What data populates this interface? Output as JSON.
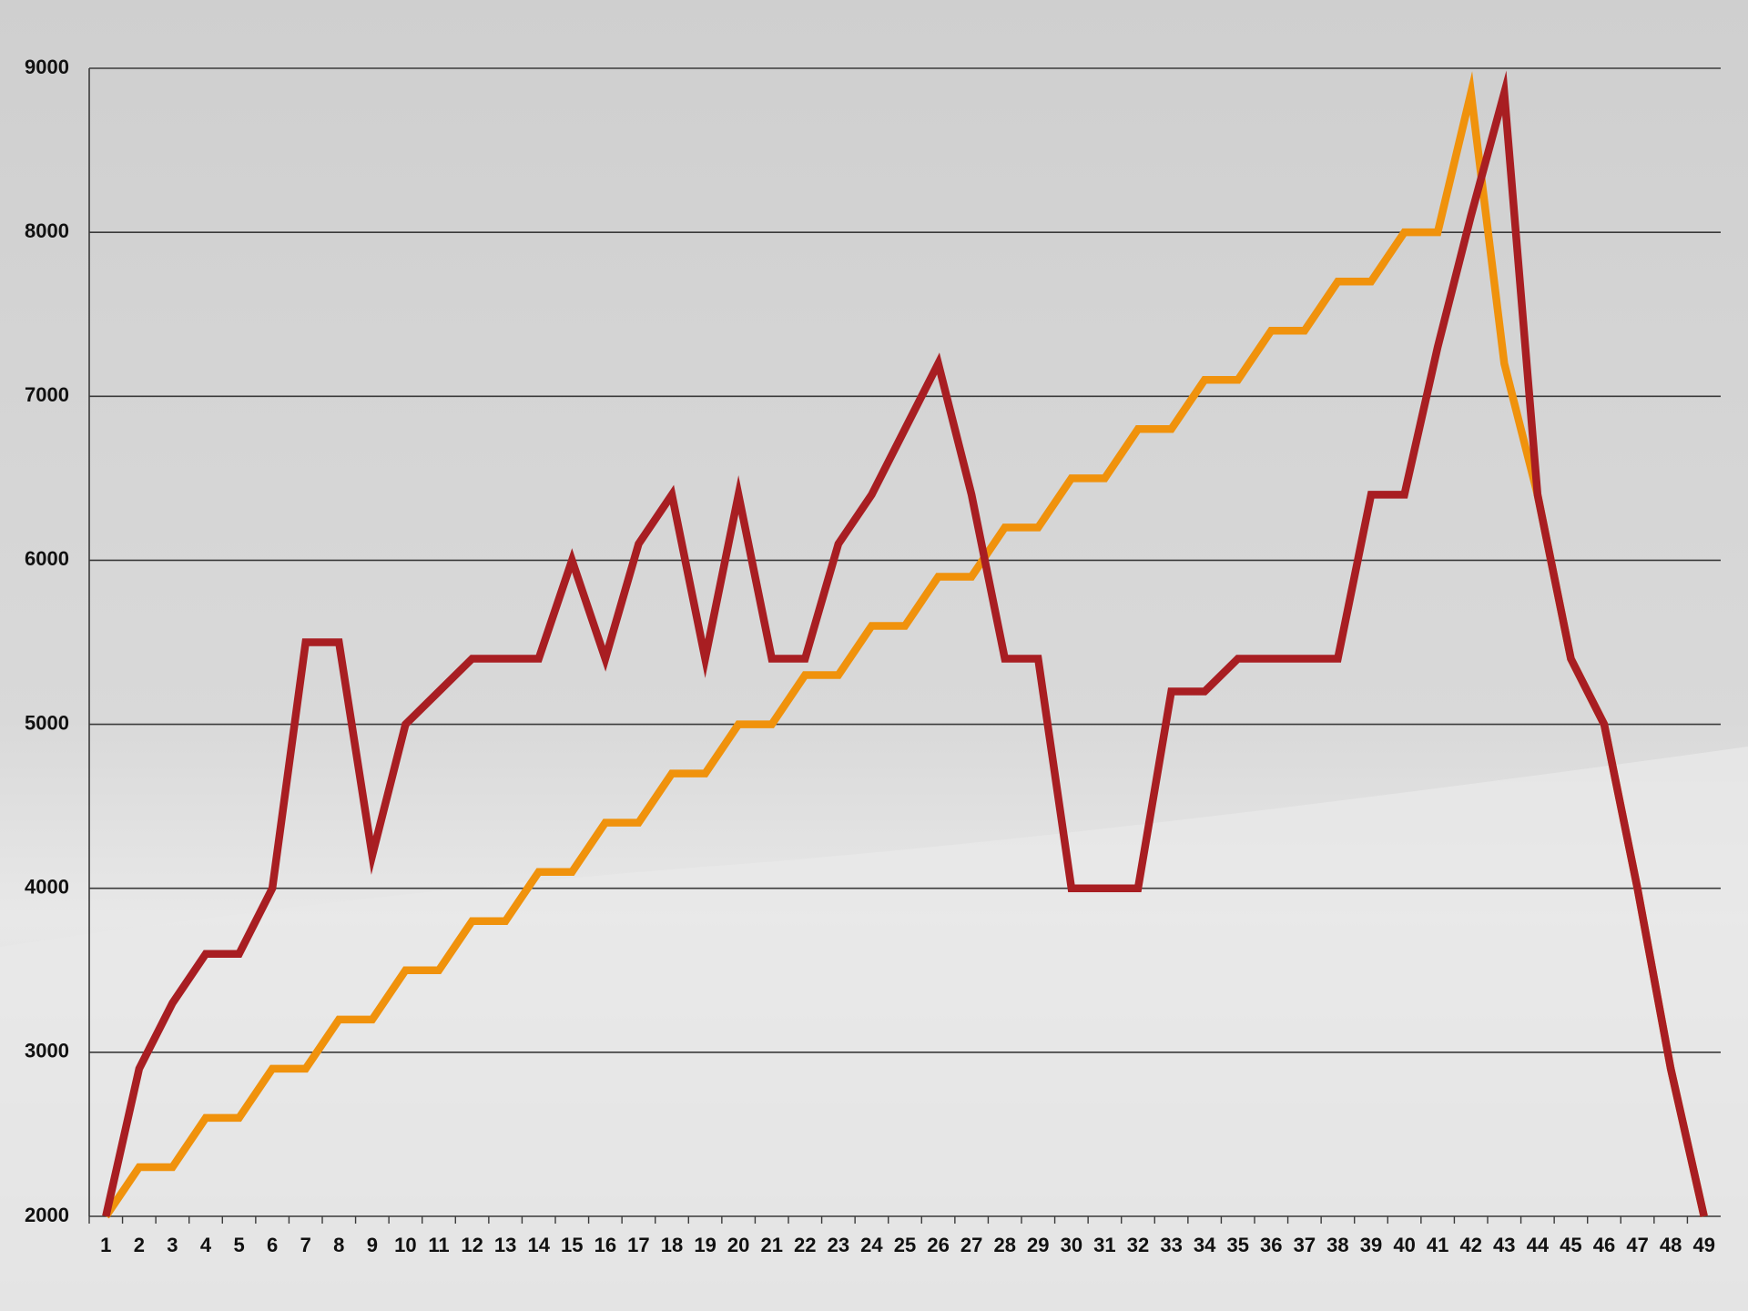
{
  "chart_data": {
    "type": "line",
    "categories": [
      1,
      2,
      3,
      4,
      5,
      6,
      7,
      8,
      9,
      10,
      11,
      12,
      13,
      14,
      15,
      16,
      17,
      18,
      19,
      20,
      21,
      22,
      23,
      24,
      25,
      26,
      27,
      28,
      29,
      30,
      31,
      32,
      33,
      34,
      35,
      36,
      37,
      38,
      39,
      40,
      41,
      42,
      43,
      44,
      45,
      46,
      47,
      48,
      49
    ],
    "series": [
      {
        "color": "#f0920c",
        "values": [
          2000,
          2300,
          2300,
          2600,
          2600,
          2900,
          2900,
          3200,
          3200,
          3500,
          3500,
          3800,
          3800,
          4100,
          4100,
          4400,
          4400,
          4700,
          4700,
          5000,
          5000,
          5300,
          5300,
          5600,
          5600,
          5900,
          5900,
          6200,
          6200,
          6500,
          6500,
          6800,
          6800,
          7100,
          7100,
          7400,
          7400,
          7700,
          7700,
          8000,
          8000,
          8850,
          7200,
          6400,
          5400,
          5000,
          4000,
          2900,
          2000
        ]
      },
      {
        "color": "#a81e22",
        "values": [
          2000,
          2900,
          3300,
          3600,
          3600,
          4000,
          5500,
          5500,
          4200,
          5000,
          5200,
          5400,
          5400,
          5400,
          6000,
          5400,
          6100,
          6400,
          5400,
          6400,
          5400,
          5400,
          6100,
          6400,
          6800,
          7200,
          6400,
          5400,
          5400,
          4000,
          4000,
          4000,
          5200,
          5200,
          5400,
          5400,
          5400,
          5400,
          6400,
          6400,
          7300,
          8100,
          8850,
          6400,
          5400,
          5000,
          4000,
          2900,
          2000
        ]
      }
    ],
    "ylim": [
      2000,
      9000
    ],
    "yticks": [
      2000,
      3000,
      4000,
      5000,
      6000,
      7000,
      8000,
      9000
    ],
    "grid": true
  }
}
